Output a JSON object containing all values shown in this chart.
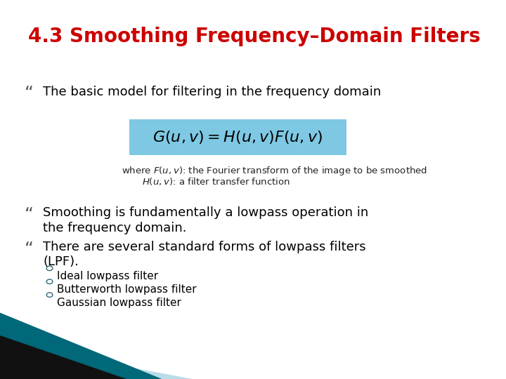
{
  "title": "4.3 Smoothing Frequency–Domain Filters",
  "title_color": "#cc0000",
  "bg_color": "#ffffff",
  "bullet1": "The basic model for filtering in the frequency domain",
  "eq_box_color": "#7ec8e3",
  "where_line1": "where F(u,v): the Fourier transform of the image to be smoothed",
  "where_line2": "H(u,v): a filter transfer function",
  "bullet2a": "Smoothing is fundamentally a lowpass operation in",
  "bullet2b": "the frequency domain.",
  "bullet3a": "There are several standard forms of lowpass filters",
  "bullet3b": "(LPF).",
  "sub1": "Ideal lowpass filter",
  "sub2": "Butterworth lowpass filter",
  "sub3": "Gaussian lowpass filter",
  "footer_dark": "#006878",
  "footer_black": "#111111",
  "footer_light": "#b8dce8"
}
